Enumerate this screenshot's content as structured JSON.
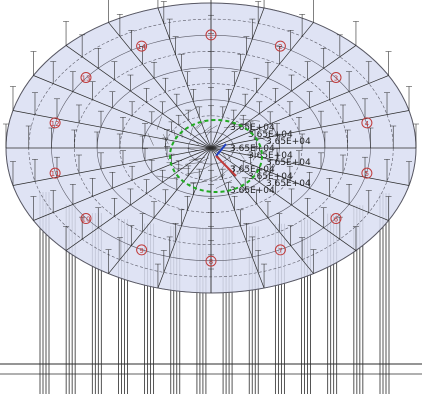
{
  "viewport": {
    "kind": "3D structural wireframe view",
    "background_color": "#ffffff",
    "deck_fill_color": "#d9def2",
    "frame_color": "#2b2b2b",
    "grid_color": "#5a5a66",
    "support_marker_color": "#c03a3a",
    "selection_ring_color": "#22aa22",
    "center_axis_color": "#1f3fbf",
    "vertical_column_count": 14,
    "radial_bay_count": 24,
    "ring_count": 9,
    "support_labels": [
      "1",
      "2",
      "3",
      "4",
      "5",
      "6",
      "7",
      "8",
      "9",
      "10",
      "11",
      "12",
      "13",
      "14"
    ],
    "annotation_values": [
      "3.65E+04",
      "3.65E+04",
      "3.65E+04",
      "3.65E+04",
      "3.65E+04",
      "3.65E+04",
      "3.65E+04",
      "3.65E+04",
      "3.65E+04",
      "3.65E+04"
    ]
  }
}
